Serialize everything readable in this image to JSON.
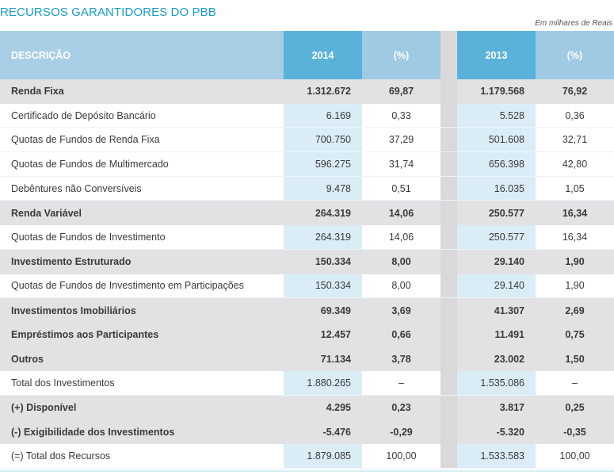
{
  "title": "RECURSOS GARANTIDORES DO PBB",
  "unit_note": "Em milhares de Reais",
  "header": {
    "desc": "DESCRIÇÃO",
    "y1": "2014",
    "p1": "(%)",
    "y2": "2013",
    "p2": "(%)"
  },
  "rows": [
    {
      "desc": "Renda Fixa",
      "v14": "1.312.672",
      "p14": "69,87",
      "v13": "1.179.568",
      "p13": "76,92"
    },
    {
      "desc": "Certificado de Depósito Bancário",
      "v14": "6.169",
      "p14": "0,33",
      "v13": "5.528",
      "p13": "0,36"
    },
    {
      "desc": "Quotas de Fundos de Renda Fixa",
      "v14": "700.750",
      "p14": "37,29",
      "v13": "501.608",
      "p13": "32,71"
    },
    {
      "desc": "Quotas de Fundos de Multimercado",
      "v14": "596.275",
      "p14": "31,74",
      "v13": "656.398",
      "p13": "42,80"
    },
    {
      "desc": "Debêntures não Conversíveis",
      "v14": "9.478",
      "p14": "0,51",
      "v13": "16.035",
      "p13": "1,05"
    },
    {
      "desc": "Renda Variável",
      "v14": "264.319",
      "p14": "14,06",
      "v13": "250.577",
      "p13": "16,34"
    },
    {
      "desc": "Quotas de Fundos de Investimento",
      "v14": "264.319",
      "p14": "14,06",
      "v13": "250.577",
      "p13": "16,34"
    },
    {
      "desc": "Investimento Estruturado",
      "v14": "150.334",
      "p14": "8,00",
      "v13": "29.140",
      "p13": "1,90"
    },
    {
      "desc": "Quotas de Fundos de Investimento em Participações",
      "v14": "150.334",
      "p14": "8,00",
      "v13": "29.140",
      "p13": "1,90"
    },
    {
      "desc": "Investimentos Imobiliários",
      "v14": "69.349",
      "p14": "3,69",
      "v13": "41.307",
      "p13": "2,69"
    },
    {
      "desc": "Empréstimos aos Participantes",
      "v14": "12.457",
      "p14": "0,66",
      "v13": "11.491",
      "p13": "0,75"
    },
    {
      "desc": "Outros",
      "v14": "71.134",
      "p14": "3,78",
      "v13": "23.002",
      "p13": "1,50"
    },
    {
      "desc": "Total dos Investimentos",
      "v14": "1.880.265",
      "p14": "–",
      "v13": "1.535.086",
      "p13": "–"
    },
    {
      "desc": "(+) Disponível",
      "v14": "4.295",
      "p14": "0,23",
      "v13": "3.817",
      "p13": "0,25"
    },
    {
      "desc": "(-) Exigibilidade dos Investimentos",
      "v14": "-5.476",
      "p14": "-0,29",
      "v13": "-5.320",
      "p13": "-0,35"
    },
    {
      "desc": "(=) Total dos Recursos",
      "v14": "1.879.085",
      "p14": "100,00",
      "v13": "1.533.583",
      "p13": "100,00"
    }
  ]
}
